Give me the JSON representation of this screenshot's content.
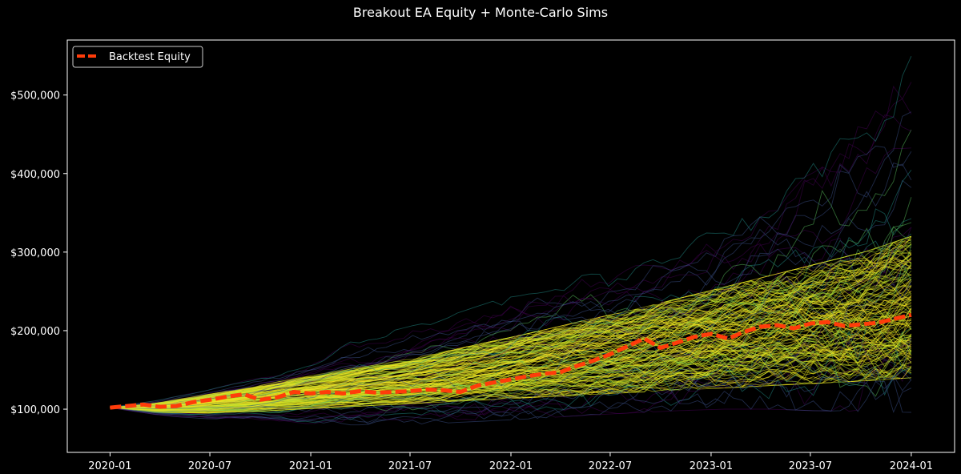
{
  "chart_data": {
    "type": "line",
    "title": "Breakout EA Equity + Monte-Carlo Sims",
    "xlabel": "",
    "ylabel": "",
    "x_tick_labels": [
      "2020-01",
      "2020-07",
      "2021-01",
      "2021-07",
      "2022-01",
      "2022-07",
      "2023-01",
      "2023-07",
      "2024-01"
    ],
    "y_tick_labels": [
      "$100,000",
      "$200,000",
      "$300,000",
      "$400,000",
      "$500,000"
    ],
    "y_ticks": [
      100000,
      200000,
      300000,
      400000,
      500000
    ],
    "xlim": [
      "2019-10-15",
      "2024-03-20"
    ],
    "ylim": [
      45000,
      570000
    ],
    "grid": false,
    "legend_position": "top-left",
    "background": "#000000",
    "series": [
      {
        "name": "Backtest Equity",
        "style": "dashed",
        "color": "#ff3c0a",
        "x": [
          "2020-01-01",
          "2020-02-01",
          "2020-03-01",
          "2020-04-01",
          "2020-05-01",
          "2020-06-01",
          "2020-07-01",
          "2020-08-01",
          "2020-09-01",
          "2020-10-01",
          "2020-11-01",
          "2020-12-01",
          "2021-01-01",
          "2021-02-01",
          "2021-03-01",
          "2021-04-01",
          "2021-05-01",
          "2021-06-01",
          "2021-07-01",
          "2021-08-01",
          "2021-09-01",
          "2021-10-01",
          "2021-11-01",
          "2021-12-01",
          "2022-01-01",
          "2022-02-01",
          "2022-03-01",
          "2022-04-01",
          "2022-05-01",
          "2022-06-01",
          "2022-07-01",
          "2022-08-01",
          "2022-09-01",
          "2022-10-01",
          "2022-11-01",
          "2022-12-01",
          "2023-01-01",
          "2023-02-01",
          "2023-03-01",
          "2023-04-01",
          "2023-05-01",
          "2023-06-01",
          "2023-07-01",
          "2023-08-01",
          "2023-09-01",
          "2023-10-01",
          "2023-11-01",
          "2023-12-01",
          "2024-01-01"
        ],
        "values": [
          102000,
          104000,
          106000,
          103000,
          104000,
          109000,
          112000,
          116000,
          119000,
          112000,
          115000,
          122000,
          120000,
          122000,
          120000,
          123000,
          121000,
          122000,
          123000,
          125000,
          124000,
          122000,
          130000,
          134000,
          138000,
          142000,
          145000,
          147000,
          155000,
          162000,
          170000,
          180000,
          190000,
          178000,
          185000,
          192000,
          196000,
          190000,
          198000,
          205000,
          207000,
          203000,
          209000,
          211000,
          206000,
          208000,
          210000,
          215000,
          220000
        ]
      }
    ],
    "monte_carlo": {
      "description_hidden": false,
      "start_value": 102000,
      "upper_envelope": [
        102000,
        112000,
        125000,
        140000,
        160000,
        185000,
        200000,
        215000,
        235000,
        255000,
        270000,
        280000,
        300000,
        340000,
        380000,
        420000,
        470000,
        550000
      ],
      "lower_envelope": [
        102000,
        92000,
        88000,
        85000,
        82000,
        80000,
        80000,
        82000,
        85000,
        88000,
        92000,
        95000,
        98000,
        100000,
        100000,
        98000,
        97000,
        96000
      ],
      "dense_upper": [
        102000,
        108000,
        118000,
        128000,
        140000,
        150000,
        160000,
        172000,
        185000,
        198000,
        212000,
        225000,
        240000,
        255000,
        270000,
        285000,
        300000,
        320000
      ],
      "dense_lower": [
        102000,
        96000,
        95000,
        97000,
        100000,
        103000,
        106000,
        109000,
        112000,
        115000,
        118000,
        121000,
        124000,
        127000,
        130000,
        133000,
        136000,
        140000
      ],
      "colormap": [
        "#440154",
        "#3b528b",
        "#21918c",
        "#5ec962",
        "#fde725",
        "#e8e419",
        "#b5de2b"
      ]
    }
  }
}
